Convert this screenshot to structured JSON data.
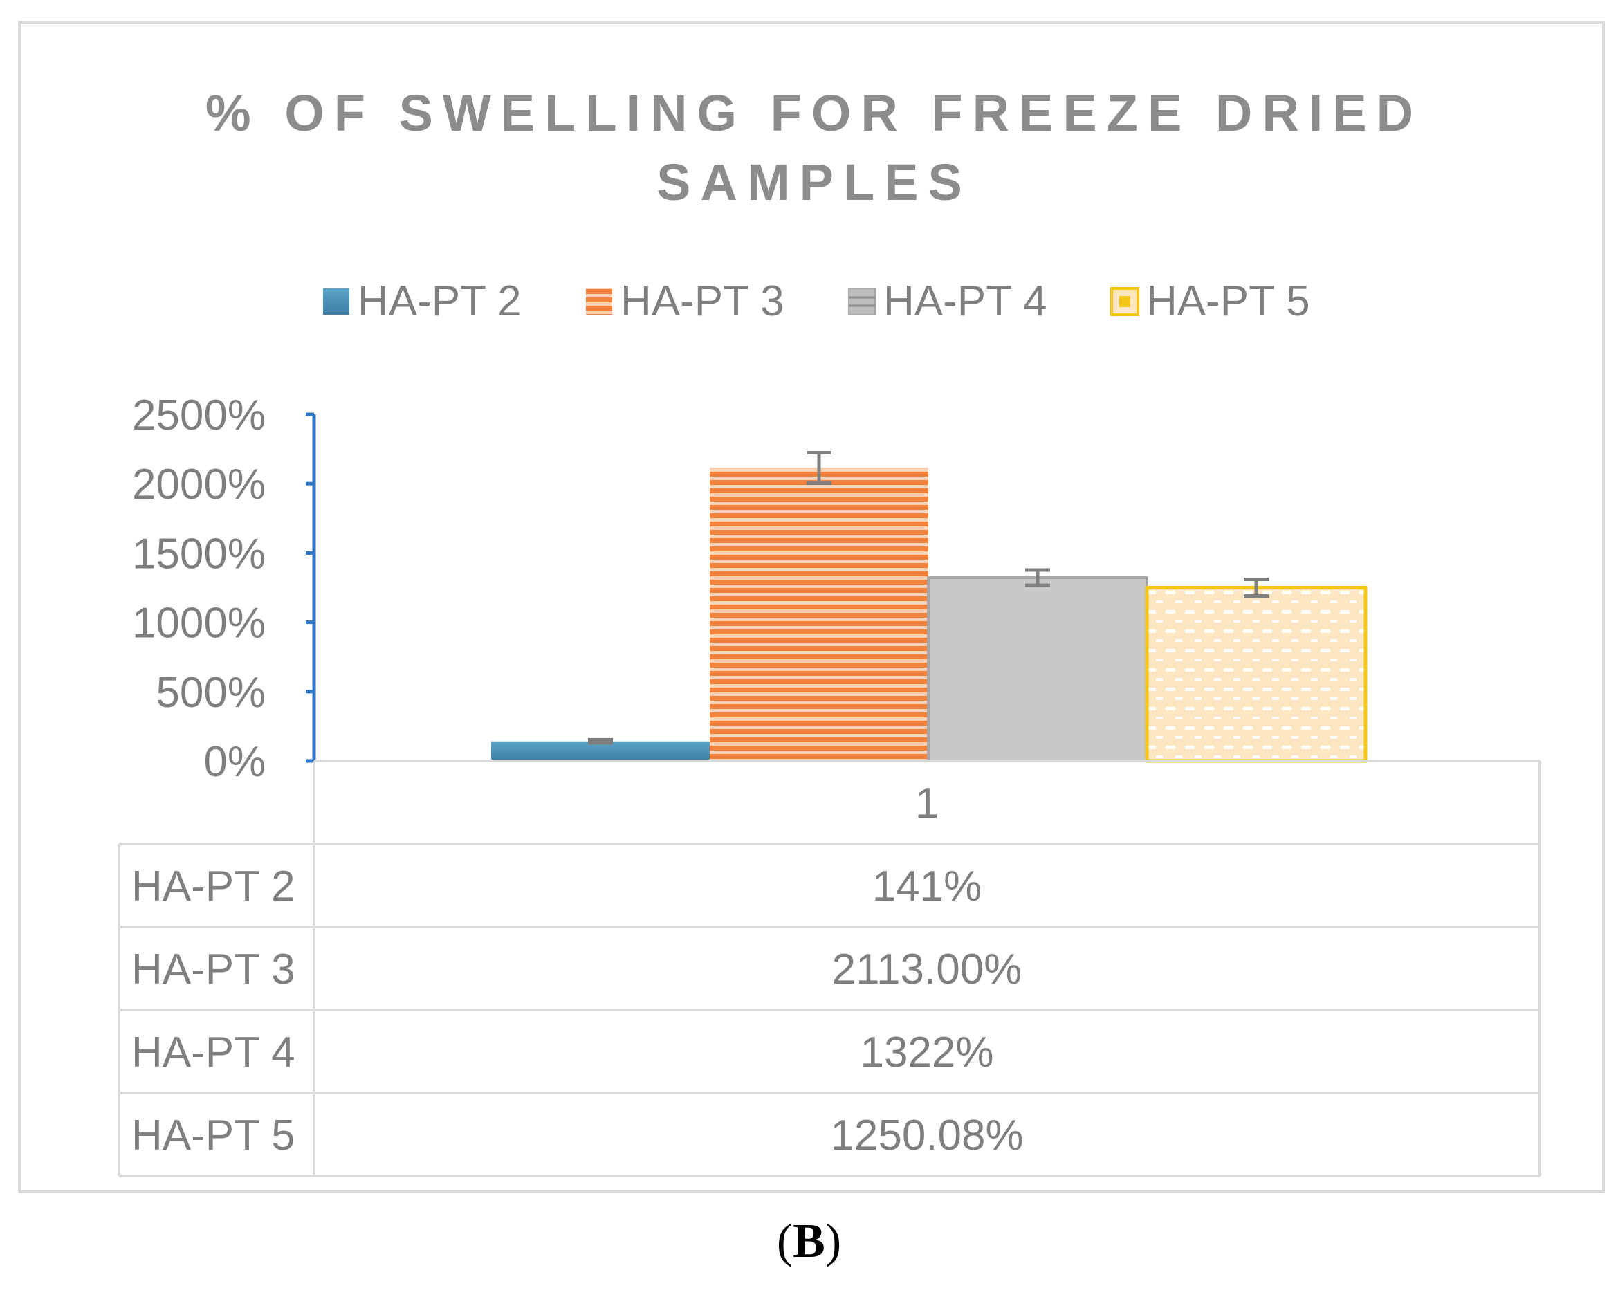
{
  "figure": {
    "caption_open": "(",
    "caption_letter": "B",
    "caption_close": ")"
  },
  "chart_data": {
    "type": "bar",
    "title_lines": [
      "% OF SWELLING  FOR FREEZE DRIED",
      "SAMPLES"
    ],
    "categories": [
      "1"
    ],
    "ylim": [
      0,
      2500
    ],
    "yticks": [
      {
        "value": 0,
        "label": "0%"
      },
      {
        "value": 500,
        "label": "500%"
      },
      {
        "value": 1000,
        "label": "1000%"
      },
      {
        "value": 1500,
        "label": "1500%"
      },
      {
        "value": 2000,
        "label": "2000%"
      },
      {
        "value": 2500,
        "label": "2500%"
      }
    ],
    "legend_position": "top",
    "grid": false,
    "series": [
      {
        "name": "HA-PT 2",
        "values": [
          141
        ],
        "error": [
          12
        ],
        "table_label": "141%",
        "color": "#4a8fb8",
        "pattern": "solid"
      },
      {
        "name": "HA-PT 3",
        "values": [
          2113
        ],
        "error": [
          110
        ],
        "table_label": "2113.00%",
        "color": "#f4813c",
        "pattern": "horizontal-stripes"
      },
      {
        "name": "HA-PT 4",
        "values": [
          1322
        ],
        "error": [
          55
        ],
        "table_label": "1322%",
        "color": "#bdbdbd",
        "pattern": "solid"
      },
      {
        "name": "HA-PT 5",
        "values": [
          1250.08
        ],
        "error": [
          60
        ],
        "table_label": "1250.08%",
        "color": "#f5c518",
        "pattern": "dotted"
      }
    ],
    "axis_color": "#2e75c6"
  }
}
